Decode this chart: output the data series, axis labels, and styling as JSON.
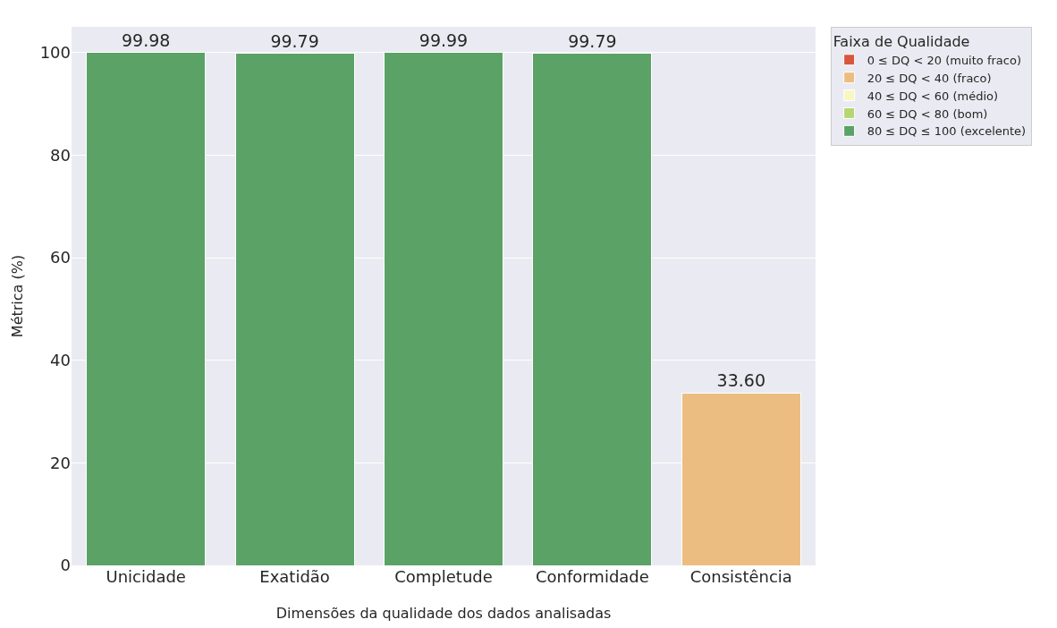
{
  "chart_data": {
    "type": "bar",
    "xlabel": "Dimensões da qualidade dos dados analisadas",
    "ylabel": "Métrica (%)",
    "legend_title": "Faixa de Qualidade",
    "categories": [
      "Unicidade",
      "Exatidão",
      "Completude",
      "Conformidade",
      "Consistência"
    ],
    "stacked": true,
    "series": [
      {
        "name": "0 ≤ DQ < 20 (muito fraco)",
        "color": "#d7563e",
        "values": [
          null,
          null,
          null,
          null,
          null
        ]
      },
      {
        "name": "20 ≤ DQ < 40 (fraco)",
        "color": "#ecbd80",
        "values": [
          null,
          null,
          null,
          null,
          33.6
        ]
      },
      {
        "name": "40 ≤ DQ < 60 (médio)",
        "color": "#f7f7c4",
        "values": [
          null,
          null,
          null,
          null,
          null
        ]
      },
      {
        "name": "60 ≤ DQ < 80 (bom)",
        "color": "#b5d673",
        "values": [
          null,
          null,
          null,
          null,
          null
        ]
      },
      {
        "name": "80 ≤ DQ ≤ 100 (excelente)",
        "color": "#5aa266",
        "values": [
          99.98,
          99.79,
          99.99,
          99.79,
          null
        ]
      }
    ],
    "value_labels": [
      "99.98",
      "99.79",
      "99.99",
      "99.79",
      "33.60"
    ],
    "ylim": [
      0,
      105
    ],
    "yticks": [
      0,
      20,
      40,
      60,
      80,
      100
    ],
    "grid": "y",
    "legend": "top right"
  }
}
